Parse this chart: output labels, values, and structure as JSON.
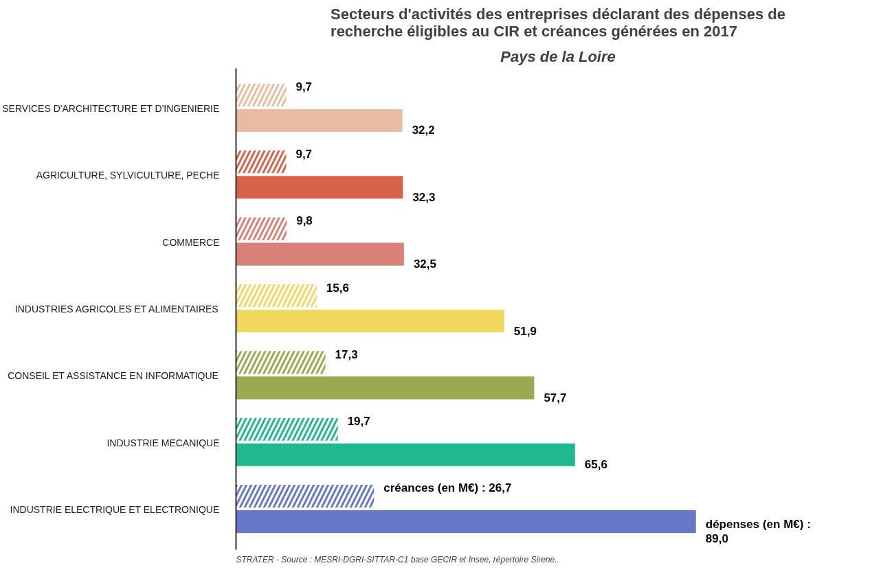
{
  "chart_data": {
    "type": "bar",
    "orientation": "horizontal",
    "title": "Secteurs d'activités des entreprises déclarant des dépenses de\nrecherche éligibles au CIR et créances générées en 2017",
    "subtitle": "Pays de la Loire",
    "categories": [
      "SERVICES D'ARCHITECTURE ET D'INGENIERIE",
      "AGRICULTURE, SYLVICULTURE, PECHE",
      "COMMERCE",
      "INDUSTRIES AGRICOLES ET ALIMENTAIRES",
      "CONSEIL ET ASSISTANCE EN INFORMATIQUE",
      "INDUSTRIE MECANIQUE",
      "INDUSTRIE ELECTRIQUE ET ELECTRONIQUE"
    ],
    "series": [
      {
        "colors": [
          "#e8bca0",
          "#d9634a",
          "#d98078",
          "#f0d860",
          "#9aaa50",
          "#20b890",
          "#6878c8"
        ],
        "values": [
          9.7,
          9.7,
          9.8,
          15.6,
          17.3,
          19.7,
          26.7
        ],
        "value_labels": [
          "9,7",
          "9,7",
          "9,8",
          "15,6",
          "17,3",
          "19,7",
          "créances (en M€) :  26,7"
        ]
      },
      {
        "colors": [
          "#e8bca0",
          "#d9634a",
          "#d98078",
          "#f0d860",
          "#9aaa50",
          "#20b890",
          "#6878c8"
        ],
        "values": [
          32.2,
          32.3,
          32.5,
          51.9,
          57.7,
          65.6,
          89.0
        ],
        "value_labels": [
          "32,2",
          "32,3",
          "32,5",
          "51,9",
          "57,7",
          "65,6",
          "dépenses (en M€) :\n89,0"
        ]
      }
    ],
    "grid": false,
    "annotations": [
      "STRATER - Source : MESRI-DGRI-SITTAR-C1 base GECIR et Insee, répertoire Sirene."
    ]
  }
}
